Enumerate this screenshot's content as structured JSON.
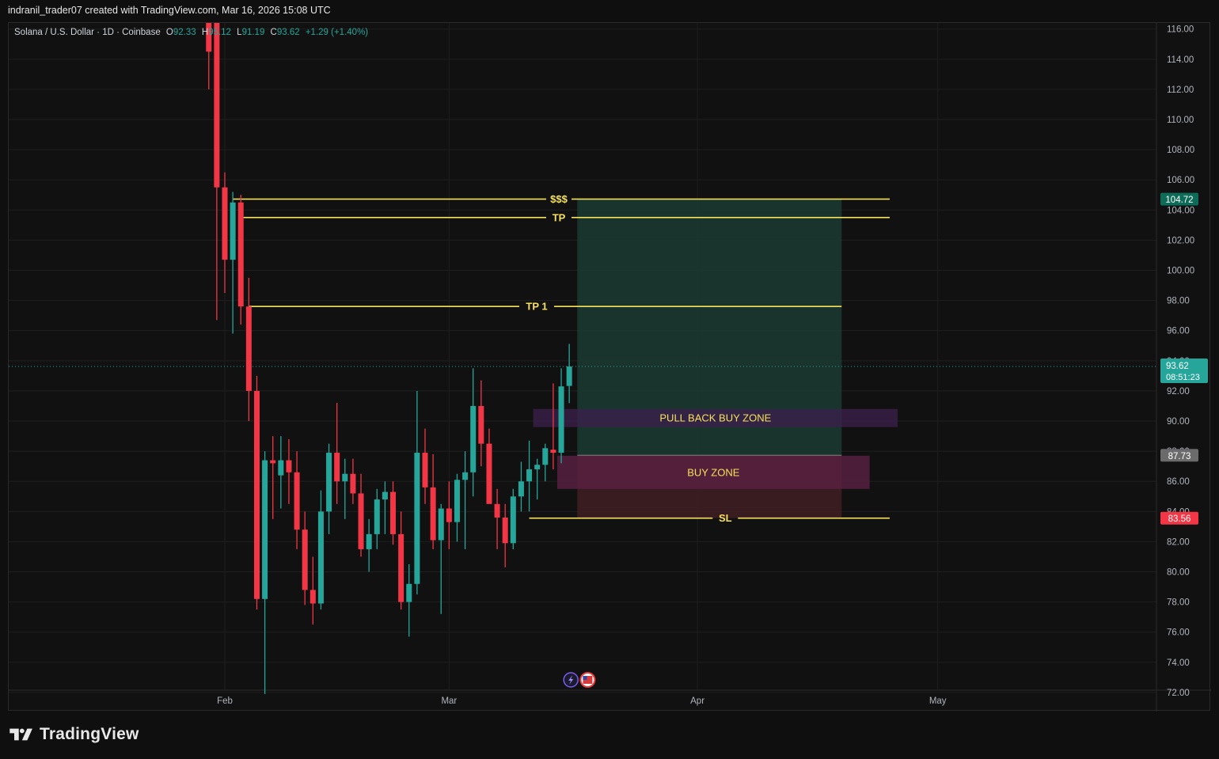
{
  "caption": "indranil_trader07 created with TradingView.com, Mar 16, 2026 15:08 UTC",
  "legend": {
    "symbol": "Solana / U.S. Dollar · 1D · Coinbase",
    "o_label": "O",
    "o_value": "92.33",
    "h_label": "H",
    "h_value": "95.12",
    "l_label": "L",
    "l_value": "91.19",
    "c_label": "C",
    "c_value": "93.62",
    "change": "+1.29 (+1.40%)"
  },
  "footer": {
    "brand": "TradingView"
  },
  "colors": {
    "up": "#26a69a",
    "down": "#f23645",
    "level_line": "#f5e15a",
    "profit_zone": "#1b3b32",
    "loss_zone": "#3f1e22",
    "pullback_zone": "#3a1f4a",
    "buy_zone": "#5a2142"
  },
  "chart_data": {
    "type": "candlestick",
    "symbol": "Solana / U.S. Dollar",
    "interval": "1D",
    "exchange": "Coinbase",
    "ylim": [
      71.5,
      116.3
    ],
    "y_ticks": [
      "116.00",
      "114.00",
      "112.00",
      "110.00",
      "108.00",
      "106.00",
      "104.00",
      "102.00",
      "100.00",
      "98.00",
      "96.00",
      "94.00",
      "92.00",
      "90.00",
      "88.00",
      "86.00",
      "84.00",
      "82.00",
      "80.00",
      "78.00",
      "76.00",
      "74.00",
      "72.00"
    ],
    "x_ticks": [
      {
        "label": "Feb",
        "day": 0
      },
      {
        "label": "Mar",
        "day": 28
      },
      {
        "label": "Apr",
        "day": 59
      },
      {
        "label": "May",
        "day": 89
      }
    ],
    "candles": [
      {
        "day": -2,
        "o": 118.0,
        "h": 118.5,
        "l": 112.0,
        "c": 114.5
      },
      {
        "day": -1,
        "o": 117.0,
        "h": 117.2,
        "l": 96.7,
        "c": 105.5
      },
      {
        "day": 0,
        "o": 105.5,
        "h": 106.5,
        "l": 98.5,
        "c": 100.7
      },
      {
        "day": 1,
        "o": 100.7,
        "h": 105.2,
        "l": 95.8,
        "c": 104.5
      },
      {
        "day": 2,
        "o": 104.5,
        "h": 105.0,
        "l": 96.4,
        "c": 97.6
      },
      {
        "day": 3,
        "o": 97.6,
        "h": 99.5,
        "l": 90.0,
        "c": 92.0
      },
      {
        "day": 4,
        "o": 92.0,
        "h": 93.0,
        "l": 77.5,
        "c": 78.2
      },
      {
        "day": 5,
        "o": 78.2,
        "h": 88.0,
        "l": 71.9,
        "c": 87.4
      },
      {
        "day": 6,
        "o": 87.4,
        "h": 89.0,
        "l": 83.5,
        "c": 87.2
      },
      {
        "day": 7,
        "o": 86.4,
        "h": 89.0,
        "l": 84.2,
        "c": 87.4
      },
      {
        "day": 8,
        "o": 87.4,
        "h": 88.8,
        "l": 84.5,
        "c": 86.6
      },
      {
        "day": 9,
        "o": 86.6,
        "h": 88.0,
        "l": 81.5,
        "c": 82.8
      },
      {
        "day": 10,
        "o": 82.8,
        "h": 84.0,
        "l": 77.8,
        "c": 78.8
      },
      {
        "day": 11,
        "o": 78.8,
        "h": 81.0,
        "l": 76.5,
        "c": 77.9
      },
      {
        "day": 12,
        "o": 77.9,
        "h": 85.4,
        "l": 77.5,
        "c": 84.0
      },
      {
        "day": 13,
        "o": 84.0,
        "h": 88.5,
        "l": 82.5,
        "c": 87.9
      },
      {
        "day": 14,
        "o": 87.9,
        "h": 91.2,
        "l": 84.5,
        "c": 86.0
      },
      {
        "day": 15,
        "o": 86.0,
        "h": 87.5,
        "l": 83.5,
        "c": 86.5
      },
      {
        "day": 16,
        "o": 86.5,
        "h": 87.5,
        "l": 84.5,
        "c": 85.2
      },
      {
        "day": 17,
        "o": 85.2,
        "h": 86.5,
        "l": 81.0,
        "c": 81.5
      },
      {
        "day": 18,
        "o": 81.5,
        "h": 83.5,
        "l": 80.0,
        "c": 82.5
      },
      {
        "day": 19,
        "o": 82.5,
        "h": 85.5,
        "l": 81.5,
        "c": 84.8
      },
      {
        "day": 20,
        "o": 84.8,
        "h": 86.0,
        "l": 82.5,
        "c": 85.3
      },
      {
        "day": 21,
        "o": 85.3,
        "h": 86.0,
        "l": 81.8,
        "c": 82.5
      },
      {
        "day": 22,
        "o": 82.5,
        "h": 84.0,
        "l": 77.5,
        "c": 78.0
      },
      {
        "day": 23,
        "o": 78.0,
        "h": 80.5,
        "l": 75.7,
        "c": 79.2
      },
      {
        "day": 24,
        "o": 79.2,
        "h": 92.0,
        "l": 78.5,
        "c": 87.9
      },
      {
        "day": 25,
        "o": 87.9,
        "h": 89.5,
        "l": 84.5,
        "c": 85.6
      },
      {
        "day": 26,
        "o": 85.6,
        "h": 87.8,
        "l": 81.5,
        "c": 82.1
      },
      {
        "day": 27,
        "o": 82.1,
        "h": 84.5,
        "l": 77.2,
        "c": 84.2
      },
      {
        "day": 28,
        "o": 84.2,
        "h": 86.0,
        "l": 81.5,
        "c": 83.3
      },
      {
        "day": 29,
        "o": 83.3,
        "h": 86.5,
        "l": 82.0,
        "c": 86.1
      },
      {
        "day": 30,
        "o": 86.1,
        "h": 88.0,
        "l": 81.5,
        "c": 86.6
      },
      {
        "day": 31,
        "o": 86.6,
        "h": 93.5,
        "l": 85.0,
        "c": 91.0
      },
      {
        "day": 32,
        "o": 91.0,
        "h": 92.7,
        "l": 87.0,
        "c": 88.5
      },
      {
        "day": 33,
        "o": 88.5,
        "h": 89.5,
        "l": 84.8,
        "c": 84.5
      },
      {
        "day": 34,
        "o": 84.5,
        "h": 85.5,
        "l": 81.5,
        "c": 83.6
      },
      {
        "day": 35,
        "o": 83.6,
        "h": 84.5,
        "l": 80.3,
        "c": 81.9
      },
      {
        "day": 36,
        "o": 81.9,
        "h": 85.5,
        "l": 81.5,
        "c": 85.0
      },
      {
        "day": 37,
        "o": 85.0,
        "h": 87.3,
        "l": 84.0,
        "c": 86.0
      },
      {
        "day": 38,
        "o": 86.0,
        "h": 88.7,
        "l": 84.0,
        "c": 86.8
      },
      {
        "day": 39,
        "o": 86.8,
        "h": 87.5,
        "l": 84.8,
        "c": 87.1
      },
      {
        "day": 40,
        "o": 87.1,
        "h": 88.5,
        "l": 86.0,
        "c": 88.2
      },
      {
        "day": 41,
        "o": 88.1,
        "h": 92.5,
        "l": 86.8,
        "c": 87.9
      },
      {
        "day": 42,
        "o": 87.9,
        "h": 93.5,
        "l": 87.2,
        "c": 92.3
      },
      {
        "day": 43,
        "o": 92.33,
        "h": 95.12,
        "l": 91.19,
        "c": 93.62
      }
    ],
    "levels": [
      {
        "label": "$$$",
        "price": 104.72,
        "day_from": 1,
        "day_to": 83
      },
      {
        "label": "TP",
        "price": 103.5,
        "day_from": 2,
        "day_to": 83
      },
      {
        "label": "TP 1",
        "price": 97.6,
        "day_from": 3,
        "day_to": 77
      },
      {
        "label": "SL",
        "price": 83.56,
        "day_from": 38,
        "day_to": 83
      }
    ],
    "position": {
      "entry": 87.73,
      "target": 104.72,
      "stop": 83.56,
      "day_from": 44,
      "day_to": 77
    },
    "zones": [
      {
        "label": "PULL BACK BUY ZONE",
        "top": 90.8,
        "bottom": 89.6,
        "day_from": 38.5,
        "day_to": 84
      },
      {
        "label": "BUY ZONE",
        "top": 87.7,
        "bottom": 85.5,
        "day_from": 41.5,
        "day_to": 80.5
      }
    ],
    "last_price": "93.62",
    "countdown": "08:51:23",
    "axis_badges": [
      {
        "value": "104.72",
        "color": "#0d6b58"
      },
      {
        "value": "87.73",
        "color": "#6b6b6b"
      },
      {
        "value": "83.56",
        "color": "#f23645"
      }
    ]
  }
}
